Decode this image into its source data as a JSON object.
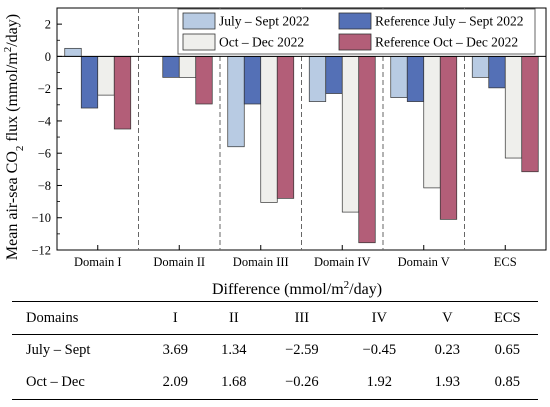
{
  "chart_data": {
    "type": "bar",
    "ylabel": "Mean air-sea CO₂ flux (mmol/m²/day)",
    "ylim": [
      -12,
      3
    ],
    "yticks": [
      2,
      0,
      -2,
      -4,
      -6,
      -8,
      -10,
      -12
    ],
    "categories": [
      "Domain I",
      "Domain II",
      "Domain III",
      "Domain IV",
      "Domain V",
      "ECS"
    ],
    "legend_position": "top-right",
    "series": [
      {
        "name": "July – Sept 2022",
        "color": "#b8cbe3",
        "values": [
          0.5,
          null,
          -5.6,
          -2.8,
          -2.55,
          -1.3
        ]
      },
      {
        "name": "Reference July – Sept 2022",
        "color": "#5470b6",
        "values": [
          -3.2,
          -1.3,
          -2.95,
          -2.3,
          -2.8,
          -1.95
        ]
      },
      {
        "name": "Oct – Dec 2022",
        "color": "#efefec",
        "values": [
          -2.4,
          -1.3,
          -9.05,
          -9.65,
          -8.15,
          -6.3
        ]
      },
      {
        "name": "Reference Oct – Dec 2022",
        "color": "#b35e78",
        "values": [
          -4.5,
          -2.95,
          -8.8,
          -11.55,
          -10.1,
          -7.15
        ]
      }
    ]
  },
  "table": {
    "title": "Difference (mmol/m²/day)",
    "headers": [
      "Domains",
      "I",
      "II",
      "III",
      "IV",
      "V",
      "ECS"
    ],
    "rows": [
      {
        "label": "July – Sept",
        "values": [
          "3.69",
          "1.34",
          "−2.59",
          "−0.45",
          "0.23",
          "0.65"
        ]
      },
      {
        "label": "Oct – Dec",
        "values": [
          "2.09",
          "1.68",
          "−0.26",
          "1.92",
          "1.93",
          "0.85"
        ]
      }
    ]
  }
}
